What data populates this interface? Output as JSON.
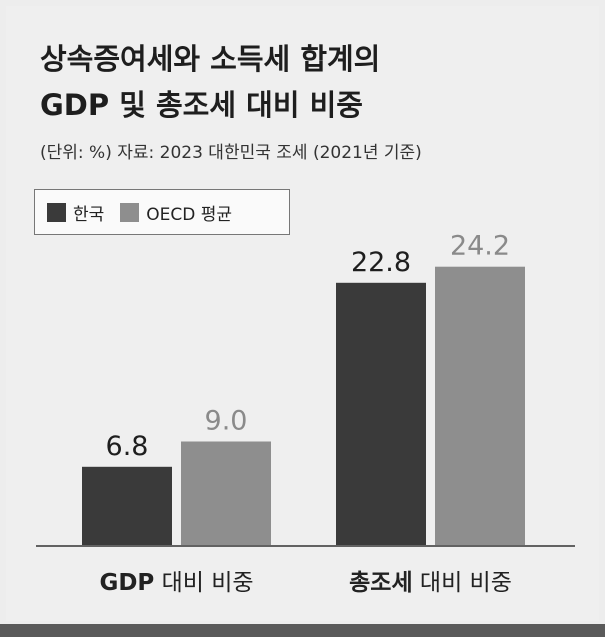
{
  "title_lines": [
    "상속증여세와 소득세 합계의",
    "GDP 및 총조세 대비 비중"
  ],
  "subtitle": "(단위: %) 자료: 2023 대한민국 조세 (2021년 기준)",
  "chart_data": {
    "type": "bar",
    "categories": [
      "GDP 대비 비중",
      "총조세 대비 비중"
    ],
    "category_parts": [
      {
        "bold": "GDP",
        "rest": " 대비 비중"
      },
      {
        "bold": "총조세",
        "rest": " 대비 비중"
      }
    ],
    "series": [
      {
        "name": "한국",
        "values": [
          6.8,
          22.8
        ],
        "color": "#3a3a3a",
        "label_color": "#1e1e1e"
      },
      {
        "name": "OECD 평균",
        "values": [
          9.0,
          24.2
        ],
        "color": "#8e8e8e",
        "label_color": "#8a8a8a"
      }
    ],
    "value_labels": [
      [
        "6.8",
        "22.8"
      ],
      [
        "9.0",
        "24.2"
      ]
    ],
    "legend_position": "top-left",
    "grid": false
  }
}
